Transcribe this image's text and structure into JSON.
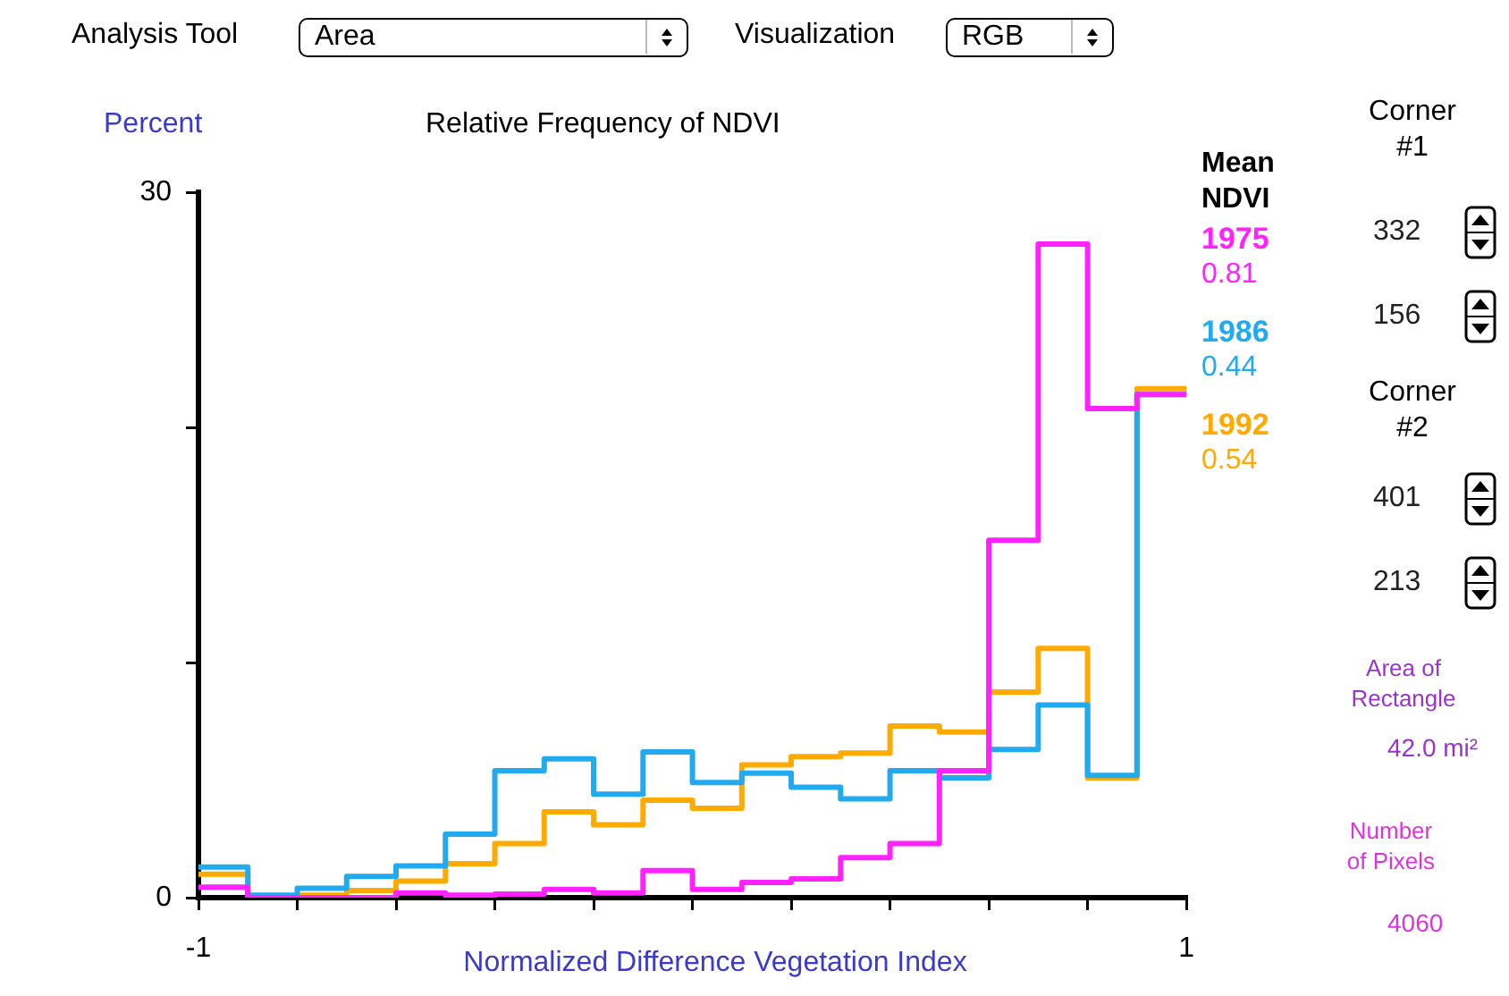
{
  "chart_data": {
    "type": "histogram",
    "title": "Relative Frequency of NDVI",
    "xlabel": "Normalized Difference Vegetation Index",
    "ylabel": "Percent",
    "legend_title": "Mean NDVI",
    "bins": [
      -1,
      -0.9,
      -0.8,
      -0.7,
      -0.6,
      -0.5,
      -0.4,
      -0.3,
      -0.2,
      -0.1,
      0,
      0.1,
      0.2,
      0.3,
      0.4,
      0.5,
      0.6,
      0.7,
      0.8,
      0.9,
      1
    ],
    "series": [
      {
        "name": "1975",
        "color": "#ff22ff",
        "values": [
          0.45,
          0,
          0,
          0,
          0.2,
          0.1,
          0.15,
          0.35,
          0.2,
          1.15,
          0.35,
          0.65,
          0.8,
          1.7,
          2.3,
          5.4,
          15.2,
          27.8,
          20.8,
          21.4
        ]
      },
      {
        "name": "1986",
        "color": "#22aaee",
        "values": [
          1.3,
          0.1,
          0.4,
          0.9,
          1.35,
          2.7,
          5.4,
          5.9,
          4.4,
          6.2,
          4.9,
          5.3,
          4.7,
          4.2,
          5.4,
          5.1,
          6.3,
          8.2,
          5.2,
          21.4
        ]
      },
      {
        "name": "1992",
        "color": "#ffaa00",
        "values": [
          1.0,
          0,
          0.1,
          0.3,
          0.7,
          1.45,
          2.3,
          3.65,
          3.1,
          4.15,
          3.8,
          5.65,
          6.0,
          6.15,
          7.3,
          7.05,
          8.75,
          10.6,
          5.1,
          21.65
        ]
      }
    ],
    "xlim": [
      -1,
      1
    ],
    "ylim": [
      0,
      30
    ],
    "xticks": [
      {
        "value": -1,
        "label": "-1"
      },
      {
        "value": -0.8,
        "label": null
      },
      {
        "value": -0.6,
        "label": null
      },
      {
        "value": -0.4,
        "label": null
      },
      {
        "value": -0.2,
        "label": null
      },
      {
        "value": 0,
        "label": null
      },
      {
        "value": 0.2,
        "label": null
      },
      {
        "value": 0.4,
        "label": null
      },
      {
        "value": 0.6,
        "label": null
      },
      {
        "value": 0.8,
        "label": null
      },
      {
        "value": 1,
        "label": "1"
      }
    ],
    "yticks": [
      0,
      {
        "value": 10,
        "label": null
      },
      {
        "value": 20,
        "label": null
      },
      30
    ],
    "grid": false,
    "legend": "right",
    "marker": "none",
    "line_style": "solid",
    "annotations": [
      "0.81",
      "0.44",
      "0.54",
      "Analysis Tool",
      "Area",
      "Visualization",
      "RGB",
      "Corner #1",
      "332",
      "156",
      "Corner #2",
      "401",
      "213",
      "Area of Rectangle",
      "42.0 mi²",
      "Number of Pixels",
      "4060"
    ]
  }
}
